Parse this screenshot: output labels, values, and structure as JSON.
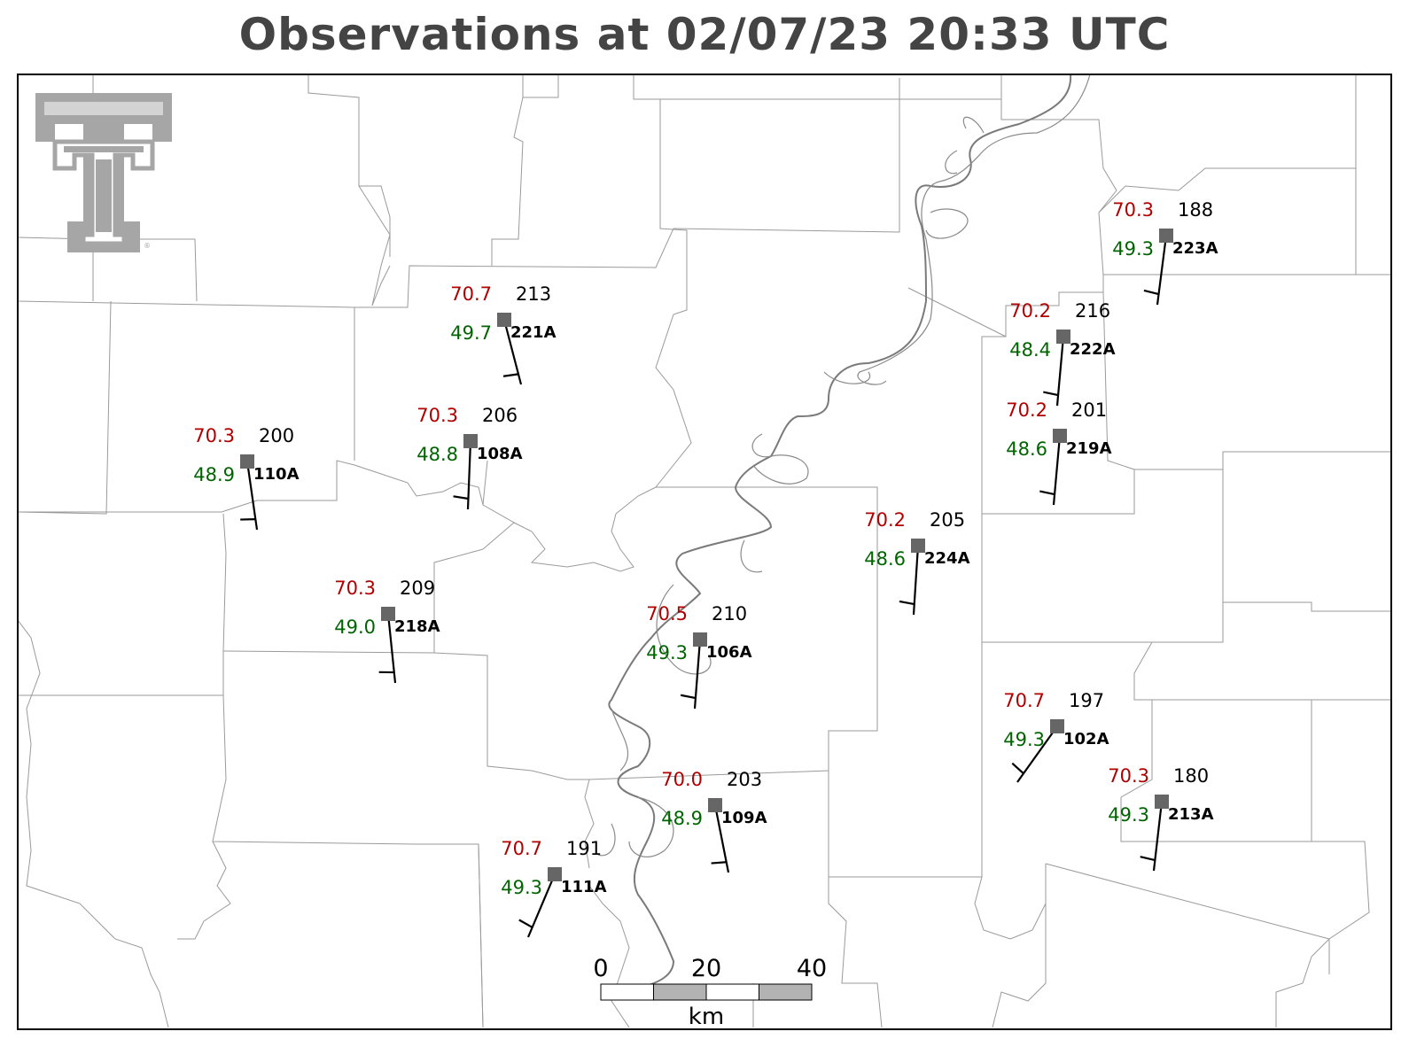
{
  "title": "Observations at 02/07/23 20:33 UTC",
  "colors": {
    "temperature": "#b00000",
    "dewpoint": "#006400",
    "pressure": "#000000",
    "station_marker": "#666666",
    "logo": "#a6a6a6",
    "border": "#000000",
    "county_lines": "#9a9a9a",
    "river": "#7a7a7a"
  },
  "logo": {
    "icon": "texas-tech-double-t-logo",
    "mark": "®"
  },
  "stations": [
    {
      "id": "221A",
      "temp": "70.7",
      "dew": "49.7",
      "pres": "213"
    },
    {
      "id": "108A",
      "temp": "70.3",
      "dew": "48.8",
      "pres": "206"
    },
    {
      "id": "110A",
      "temp": "70.3",
      "dew": "48.9",
      "pres": "200"
    },
    {
      "id": "218A",
      "temp": "70.3",
      "dew": "49.0",
      "pres": "209"
    },
    {
      "id": "106A",
      "temp": "70.5",
      "dew": "49.3",
      "pres": "210"
    },
    {
      "id": "109A",
      "temp": "70.0",
      "dew": "48.9",
      "pres": "203"
    },
    {
      "id": "111A",
      "temp": "70.7",
      "dew": "49.3",
      "pres": "191"
    },
    {
      "id": "224A",
      "temp": "70.2",
      "dew": "48.6",
      "pres": "205"
    },
    {
      "id": "222A",
      "temp": "70.2",
      "dew": "48.4",
      "pres": "216"
    },
    {
      "id": "219A",
      "temp": "70.2",
      "dew": "48.6",
      "pres": "201"
    },
    {
      "id": "223A",
      "temp": "70.3",
      "dew": "49.3",
      "pres": "188"
    },
    {
      "id": "102A",
      "temp": "70.7",
      "dew": "49.3",
      "pres": "197"
    },
    {
      "id": "213A",
      "temp": "70.3",
      "dew": "49.3",
      "pres": "180"
    }
  ],
  "scale_bar": {
    "ticks": [
      "0",
      "20",
      "40"
    ],
    "unit": "km"
  }
}
